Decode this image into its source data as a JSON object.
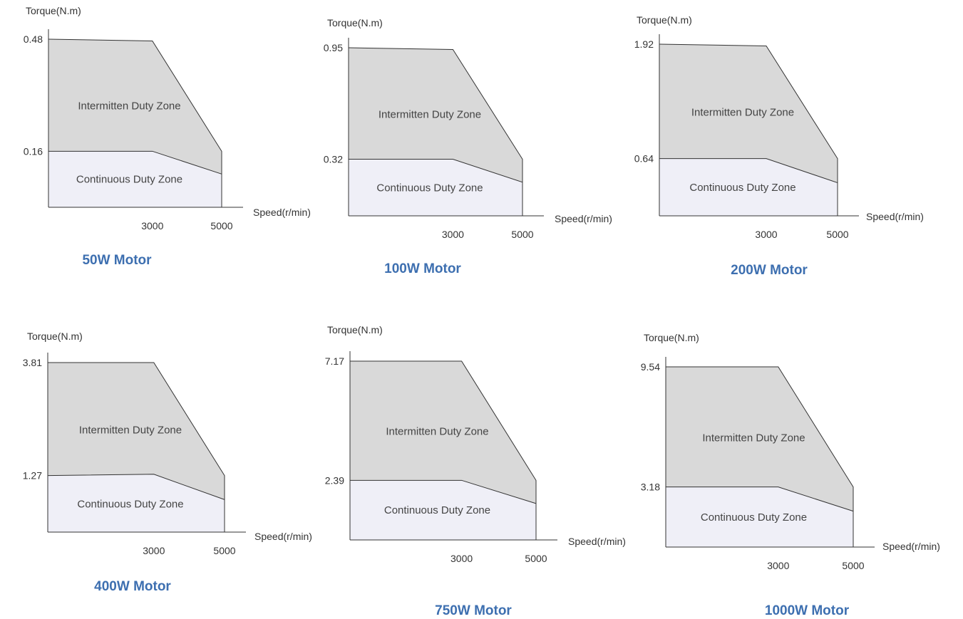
{
  "colors": {
    "intermittent_zone": "#d9d9d9",
    "continuous_zone": "#efeff7",
    "title": "#3d6fb0",
    "lines": "#333333"
  },
  "chart_data": [
    {
      "type": "area",
      "title": "50W Motor",
      "ylabel": "Torque(N.m)",
      "xlabel": "Speed(r/min)",
      "x_ticks": [
        3000,
        5000
      ],
      "y_ticks": [
        0.16,
        0.48
      ],
      "intermittent_label": "Intermitten Duty Zone",
      "continuous_label": "Continuous Duty Zone",
      "peak_curve": {
        "x": [
          0,
          3000,
          5000,
          5000
        ],
        "y": [
          0.48,
          0.475,
          0.16,
          0
        ]
      },
      "rated_curve": {
        "x": [
          0,
          3000,
          5000
        ],
        "y": [
          0.16,
          0.16,
          0.095
        ]
      }
    },
    {
      "type": "area",
      "title": "100W Motor",
      "ylabel": "Torque(N.m)",
      "xlabel": "Speed(r/min)",
      "x_ticks": [
        3000,
        5000
      ],
      "y_ticks": [
        0.32,
        0.95
      ],
      "intermittent_label": "Intermitten Duty Zone",
      "continuous_label": "Continuous Duty Zone",
      "peak_curve": {
        "x": [
          0,
          3000,
          5000,
          5000
        ],
        "y": [
          0.95,
          0.94,
          0.32,
          0
        ]
      },
      "rated_curve": {
        "x": [
          0,
          3000,
          5000
        ],
        "y": [
          0.32,
          0.32,
          0.19
        ]
      }
    },
    {
      "type": "area",
      "title": "200W Motor",
      "ylabel": "Torque(N.m)",
      "xlabel": "Speed(r/min)",
      "x_ticks": [
        3000,
        5000
      ],
      "y_ticks": [
        0.64,
        1.92
      ],
      "intermittent_label": "Intermitten Duty Zone",
      "continuous_label": "Continuous Duty Zone",
      "peak_curve": {
        "x": [
          0,
          3000,
          5000,
          5000
        ],
        "y": [
          1.92,
          1.9,
          0.64,
          0
        ]
      },
      "rated_curve": {
        "x": [
          0,
          3000,
          5000
        ],
        "y": [
          0.64,
          0.64,
          0.37
        ]
      }
    },
    {
      "type": "area",
      "title": "400W Motor",
      "ylabel": "Torque(N.m)",
      "xlabel": "Speed(r/min)",
      "x_ticks": [
        3000,
        5000
      ],
      "y_ticks": [
        1.27,
        3.81
      ],
      "intermittent_label": "Intermitten Duty Zone",
      "continuous_label": "Continuous Duty Zone",
      "peak_curve": {
        "x": [
          0,
          3000,
          5000,
          5000
        ],
        "y": [
          3.81,
          3.81,
          1.27,
          0
        ]
      },
      "rated_curve": {
        "x": [
          0,
          3000,
          5000
        ],
        "y": [
          1.27,
          1.3,
          0.73
        ]
      }
    },
    {
      "type": "area",
      "title": "750W Motor",
      "ylabel": "Torque(N.m)",
      "xlabel": "Speed(r/min)",
      "x_ticks": [
        3000,
        5000
      ],
      "y_ticks": [
        2.39,
        7.17
      ],
      "intermittent_label": "Intermitten Duty Zone",
      "continuous_label": "Continuous Duty Zone",
      "peak_curve": {
        "x": [
          0,
          3000,
          5000,
          5000
        ],
        "y": [
          7.17,
          7.17,
          2.39,
          0
        ]
      },
      "rated_curve": {
        "x": [
          0,
          3000,
          5000
        ],
        "y": [
          2.39,
          2.39,
          1.46
        ]
      }
    },
    {
      "type": "area",
      "title": "1000W Motor",
      "ylabel": "Torque(N.m)",
      "xlabel": "Speed(r/min)",
      "x_ticks": [
        3000,
        5000
      ],
      "y_ticks": [
        3.18,
        9.54
      ],
      "intermittent_label": "Intermitten Duty Zone",
      "continuous_label": "Continuous Duty Zone",
      "peak_curve": {
        "x": [
          0,
          3000,
          5000,
          5000
        ],
        "y": [
          9.54,
          9.54,
          3.18,
          0
        ]
      },
      "rated_curve": {
        "x": [
          0,
          3000,
          5000
        ],
        "y": [
          3.18,
          3.18,
          1.9
        ]
      }
    }
  ]
}
